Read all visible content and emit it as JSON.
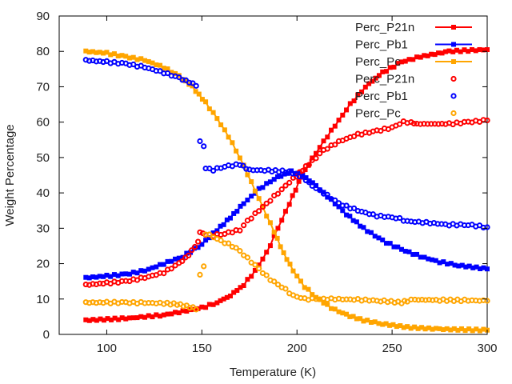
{
  "chart_data": {
    "type": "scatter",
    "title": "",
    "xlabel": "Temperature (K)",
    "ylabel": "Weight Percentage",
    "xlim": [
      75,
      300
    ],
    "ylim": [
      0,
      90
    ],
    "xticks": [
      100,
      150,
      200,
      250,
      300
    ],
    "yticks": [
      0,
      10,
      20,
      30,
      40,
      50,
      60,
      70,
      80,
      90
    ],
    "grid": false,
    "legend_position": "top-right",
    "sample_step_K": 2,
    "series": [
      {
        "name": "Perc_P21n",
        "style": "linespoints",
        "marker": "filled",
        "color": "#ff0000",
        "keypoints": [
          [
            89,
            4
          ],
          [
            110,
            4.5
          ],
          [
            130,
            5.5
          ],
          [
            140,
            6.5
          ],
          [
            150,
            7.5
          ],
          [
            158,
            9
          ],
          [
            165,
            11
          ],
          [
            172,
            14
          ],
          [
            178,
            18
          ],
          [
            184,
            23
          ],
          [
            190,
            30
          ],
          [
            196,
            37
          ],
          [
            201,
            43
          ],
          [
            206,
            48
          ],
          [
            212,
            53
          ],
          [
            220,
            59
          ],
          [
            228,
            65
          ],
          [
            236,
            70
          ],
          [
            245,
            74
          ],
          [
            255,
            77
          ],
          [
            265,
            78.5
          ],
          [
            280,
            80
          ],
          [
            300,
            80.5
          ]
        ]
      },
      {
        "name": "Perc_Pb1",
        "style": "linespoints",
        "marker": "filled",
        "color": "#0000ff",
        "keypoints": [
          [
            89,
            16
          ],
          [
            100,
            16.5
          ],
          [
            110,
            17
          ],
          [
            120,
            18
          ],
          [
            130,
            20
          ],
          [
            140,
            22
          ],
          [
            150,
            25.5
          ],
          [
            158,
            29.5
          ],
          [
            165,
            33
          ],
          [
            172,
            37
          ],
          [
            180,
            41
          ],
          [
            188,
            44
          ],
          [
            197,
            46
          ],
          [
            203,
            45
          ],
          [
            210,
            42
          ],
          [
            218,
            38
          ],
          [
            226,
            34
          ],
          [
            235,
            30
          ],
          [
            245,
            26.5
          ],
          [
            255,
            24
          ],
          [
            265,
            22
          ],
          [
            275,
            20.5
          ],
          [
            285,
            19.5
          ],
          [
            300,
            18.5
          ]
        ]
      },
      {
        "name": "Perc_Pc",
        "style": "linespoints",
        "marker": "filled",
        "color": "#ffa500",
        "keypoints": [
          [
            89,
            80
          ],
          [
            100,
            79.5
          ],
          [
            110,
            78.5
          ],
          [
            120,
            77.5
          ],
          [
            130,
            75.5
          ],
          [
            138,
            73
          ],
          [
            145,
            70
          ],
          [
            152,
            65.5
          ],
          [
            158,
            61
          ],
          [
            164,
            56
          ],
          [
            170,
            50
          ],
          [
            176,
            43
          ],
          [
            182,
            36
          ],
          [
            188,
            29
          ],
          [
            193,
            23
          ],
          [
            198,
            18
          ],
          [
            204,
            13.5
          ],
          [
            210,
            10.5
          ],
          [
            218,
            7.5
          ],
          [
            226,
            5.5
          ],
          [
            235,
            4
          ],
          [
            245,
            3
          ],
          [
            258,
            2
          ],
          [
            275,
            1.5
          ],
          [
            300,
            1.2
          ]
        ]
      },
      {
        "name": "Perc_P21n",
        "style": "points",
        "marker": "hollow",
        "color": "#ff0000",
        "keypoints": [
          [
            89,
            14
          ],
          [
            100,
            14.5
          ],
          [
            110,
            15
          ],
          [
            120,
            16
          ],
          [
            130,
            17.5
          ],
          [
            138,
            20
          ],
          [
            143,
            22.5
          ],
          [
            148,
            26
          ],
          [
            149,
            29
          ],
          [
            152,
            28.2
          ],
          [
            156,
            28
          ],
          [
            162,
            28.5
          ],
          [
            170,
            29.5
          ],
          [
            174,
            32
          ],
          [
            180,
            35
          ],
          [
            186,
            38
          ],
          [
            192,
            41
          ],
          [
            198,
            44
          ],
          [
            203,
            46.5
          ],
          [
            208,
            49
          ],
          [
            214,
            52
          ],
          [
            222,
            54.5
          ],
          [
            232,
            56.5
          ],
          [
            242,
            57.5
          ],
          [
            250,
            58.5
          ],
          [
            256,
            60
          ],
          [
            260,
            60
          ],
          [
            263,
            59.5
          ],
          [
            280,
            59.5
          ],
          [
            290,
            60
          ],
          [
            300,
            60.5
          ]
        ]
      },
      {
        "name": "Perc_Pb1",
        "style": "points",
        "marker": "hollow",
        "color": "#0000ff",
        "keypoints": [
          [
            89,
            77.5
          ],
          [
            100,
            77
          ],
          [
            110,
            76.5
          ],
          [
            120,
            75.5
          ],
          [
            130,
            74
          ],
          [
            138,
            72.5
          ],
          [
            147,
            70.5
          ],
          [
            149,
            54.5
          ],
          [
            151,
            53
          ],
          [
            152,
            47
          ],
          [
            156,
            46.5
          ],
          [
            162,
            47.5
          ],
          [
            170,
            48
          ],
          [
            175,
            46.5
          ],
          [
            185,
            46.3
          ],
          [
            196,
            46
          ],
          [
            203,
            44.5
          ],
          [
            208,
            42
          ],
          [
            214,
            40
          ],
          [
            222,
            37
          ],
          [
            232,
            35
          ],
          [
            242,
            33.5
          ],
          [
            252,
            33
          ],
          [
            258,
            32
          ],
          [
            270,
            31.5
          ],
          [
            280,
            31
          ],
          [
            290,
            31
          ],
          [
            300,
            30.3
          ]
        ]
      },
      {
        "name": "Perc_Pc",
        "style": "points",
        "marker": "hollow",
        "color": "#ffa500",
        "keypoints": [
          [
            89,
            9
          ],
          [
            100,
            9
          ],
          [
            110,
            9
          ],
          [
            120,
            8.9
          ],
          [
            130,
            8.8
          ],
          [
            137,
            8.5
          ],
          [
            142,
            8
          ],
          [
            147,
            7.2
          ],
          [
            149,
            17
          ],
          [
            151,
            19
          ],
          [
            152,
            28.5
          ],
          [
            156,
            27.5
          ],
          [
            162,
            26
          ],
          [
            168,
            24.5
          ],
          [
            174,
            21.5
          ],
          [
            180,
            18.5
          ],
          [
            186,
            15.5
          ],
          [
            192,
            13.5
          ],
          [
            198,
            11
          ],
          [
            204,
            10
          ],
          [
            210,
            10
          ],
          [
            220,
            10
          ],
          [
            232,
            9.8
          ],
          [
            244,
            9.5
          ],
          [
            255,
            9
          ],
          [
            258,
            9.5
          ],
          [
            262,
            9.8
          ],
          [
            275,
            9.7
          ],
          [
            290,
            9.6
          ],
          [
            300,
            9.5
          ]
        ]
      }
    ]
  }
}
